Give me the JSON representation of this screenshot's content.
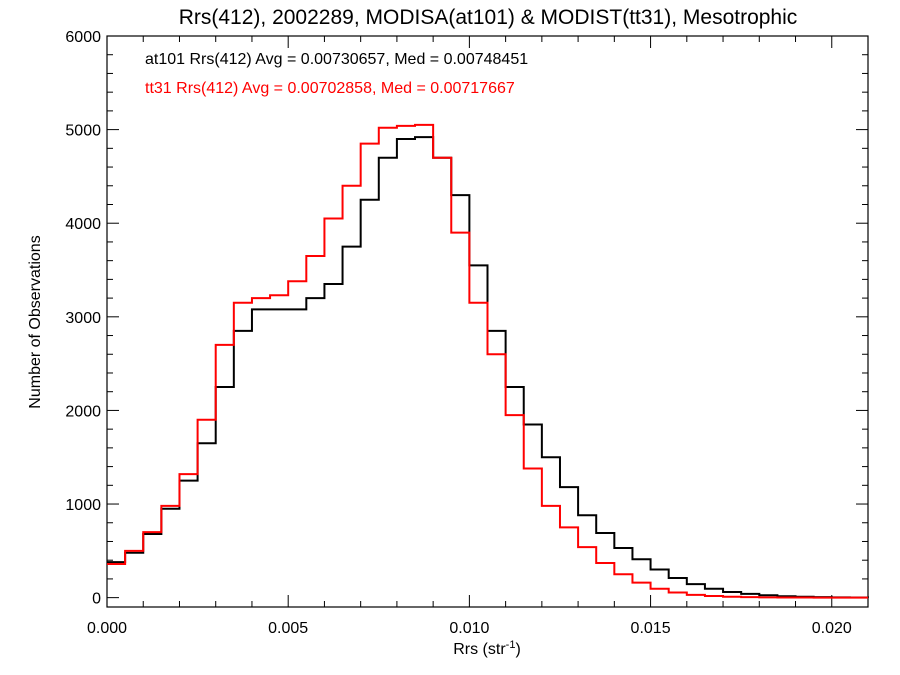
{
  "chart_data": {
    "type": "line",
    "title": "Rrs(412), 2002289, MODISA(at101) & MODIST(tt31), Mesotrophic",
    "xlabel_main": "Rrs (str",
    "xlabel_sup": "-1",
    "xlabel_close": ")",
    "ylabel": "Number of Observations",
    "xlim": [
      0.0,
      0.021
    ],
    "ylim": [
      -100,
      6000
    ],
    "xticks": [
      0.0,
      0.005,
      0.01,
      0.015,
      0.02
    ],
    "xtick_labels": [
      "0.000",
      "0.005",
      "0.010",
      "0.015",
      "0.020"
    ],
    "yticks": [
      0,
      1000,
      2000,
      3000,
      4000,
      5000,
      6000
    ],
    "ytick_labels": [
      "0",
      "1000",
      "2000",
      "3000",
      "4000",
      "5000",
      "6000"
    ],
    "grid": false,
    "annotations": [
      {
        "text": "at101 Rrs(412) Avg = 0.00730657, Med = 0.00748451",
        "color": "#000000"
      },
      {
        "text": "tt31 Rrs(412) Avg = 0.00702858, Med = 0.00717667",
        "color": "#ff0000"
      }
    ],
    "series": [
      {
        "color": "#000000",
        "step": true,
        "x": [
          0.0,
          0.0005,
          0.001,
          0.0015,
          0.002,
          0.0025,
          0.003,
          0.0035,
          0.004,
          0.0045,
          0.005,
          0.0055,
          0.006,
          0.0065,
          0.007,
          0.0075,
          0.008,
          0.0085,
          0.009,
          0.0095,
          0.01,
          0.0105,
          0.011,
          0.0115,
          0.012,
          0.0125,
          0.013,
          0.0135,
          0.014,
          0.0145,
          0.015,
          0.0155,
          0.016,
          0.0165,
          0.017,
          0.0175,
          0.018,
          0.0185,
          0.019,
          0.0195,
          0.02,
          0.0205,
          0.021
        ],
        "y": [
          380,
          480,
          680,
          950,
          1250,
          1650,
          2250,
          2850,
          3080,
          3080,
          3080,
          3200,
          3350,
          3750,
          4250,
          4700,
          4900,
          4920,
          4700,
          4300,
          3550,
          2850,
          2250,
          1850,
          1500,
          1180,
          880,
          690,
          530,
          410,
          300,
          210,
          145,
          95,
          60,
          40,
          25,
          15,
          10,
          5,
          3,
          2,
          0
        ]
      },
      {
        "color": "#ff0000",
        "step": true,
        "x": [
          0.0,
          0.0005,
          0.001,
          0.0015,
          0.002,
          0.0025,
          0.003,
          0.0035,
          0.004,
          0.0045,
          0.005,
          0.0055,
          0.006,
          0.0065,
          0.007,
          0.0075,
          0.008,
          0.0085,
          0.009,
          0.0095,
          0.01,
          0.0105,
          0.011,
          0.0115,
          0.012,
          0.0125,
          0.013,
          0.0135,
          0.014,
          0.0145,
          0.015,
          0.0155,
          0.016,
          0.0165,
          0.017,
          0.0175,
          0.018,
          0.0185,
          0.019,
          0.0195,
          0.02,
          0.0205,
          0.021
        ],
        "y": [
          360,
          500,
          700,
          980,
          1320,
          1900,
          2700,
          3150,
          3200,
          3230,
          3380,
          3650,
          4050,
          4400,
          4850,
          5020,
          5040,
          5050,
          4700,
          3900,
          3150,
          2600,
          1950,
          1380,
          980,
          750,
          540,
          370,
          250,
          160,
          95,
          55,
          30,
          18,
          10,
          6,
          3,
          2,
          1,
          0,
          0,
          0,
          0
        ]
      }
    ]
  }
}
